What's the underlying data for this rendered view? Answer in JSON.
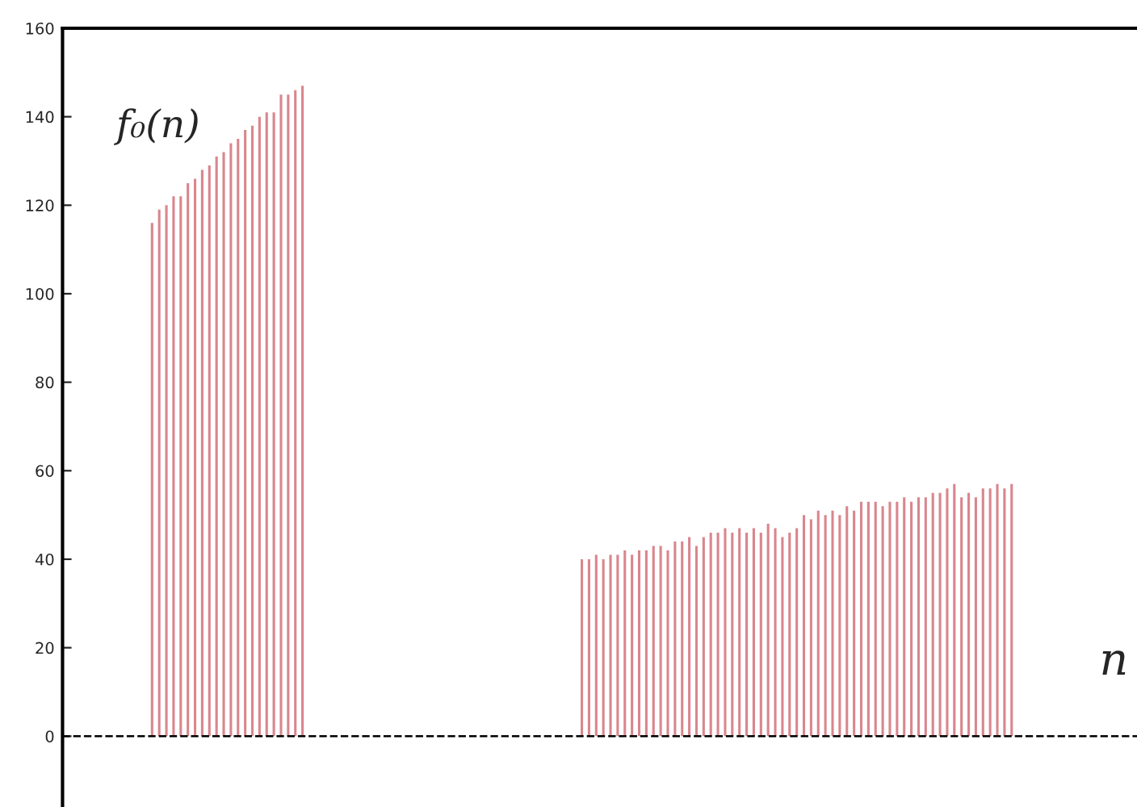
{
  "chart_data": {
    "type": "bar",
    "categories": [
      null,
      null,
      null,
      null,
      null,
      null,
      null,
      null,
      null,
      null,
      null,
      null,
      null,
      null,
      null,
      null,
      null,
      null,
      null,
      null,
      null,
      null,
      null,
      null,
      null,
      null,
      null,
      null,
      null,
      null,
      null,
      null,
      null,
      null,
      null,
      null,
      null,
      null,
      null,
      null,
      null,
      null,
      null,
      null,
      null,
      null,
      null,
      null,
      null,
      null,
      null,
      null,
      null,
      null,
      null,
      null,
      null,
      null,
      null,
      null,
      null,
      null,
      null,
      null,
      null,
      null,
      null,
      null,
      null,
      null,
      null,
      null,
      null,
      null,
      null,
      null,
      null,
      null,
      null,
      null,
      null,
      null,
      null,
      null,
      null,
      null,
      null,
      null,
      null,
      null,
      null,
      null,
      null,
      null,
      null,
      null,
      null,
      null,
      null,
      null,
      null,
      null,
      null,
      null,
      null,
      null,
      null,
      null,
      null,
      null,
      null,
      null,
      null,
      null,
      null,
      null,
      null,
      null,
      null,
      null,
      null,
      null,
      null,
      null,
      null,
      null,
      null,
      null,
      null,
      null,
      null,
      null,
      null,
      null,
      null,
      null,
      null,
      null,
      null,
      null,
      null,
      null,
      null,
      null,
      null,
      null,
      null,
      null,
      null,
      null
    ],
    "values": [
      0,
      0,
      0,
      0,
      0,
      0,
      0,
      0,
      0,
      0,
      0,
      0,
      116,
      119,
      120,
      122,
      122,
      125,
      126,
      128,
      129,
      131,
      132,
      134,
      135,
      137,
      138,
      140,
      141,
      141,
      145,
      145,
      146,
      147,
      0,
      0,
      0,
      0,
      0,
      0,
      0,
      0,
      0,
      0,
      0,
      0,
      0,
      0,
      0,
      0,
      0,
      0,
      0,
      0,
      0,
      0,
      0,
      0,
      0,
      0,
      0,
      0,
      0,
      0,
      0,
      0,
      0,
      0,
      0,
      0,
      0,
      0,
      40,
      40,
      41,
      40,
      41,
      41,
      42,
      41,
      42,
      42,
      43,
      43,
      42,
      44,
      44,
      45,
      43,
      45,
      46,
      46,
      47,
      46,
      47,
      46,
      47,
      46,
      48,
      47,
      45,
      46,
      47,
      50,
      49,
      51,
      50,
      51,
      50,
      52,
      51,
      53,
      53,
      53,
      52,
      53,
      53,
      54,
      53,
      54,
      54,
      55,
      55,
      56,
      57,
      54,
      55,
      54,
      56,
      56,
      57,
      56,
      57,
      0,
      0,
      0,
      0,
      0,
      0,
      0,
      0,
      0,
      0,
      0,
      0,
      0,
      0,
      0,
      0,
      0
    ],
    "color": "#d9868e",
    "ylim": [
      -16,
      160
    ],
    "yticks": [
      0,
      20,
      40,
      60,
      80,
      100,
      120,
      140,
      160
    ],
    "tick_labels": "y",
    "grid": false,
    "ref_lines": [
      {
        "axis": "y",
        "value": 0,
        "color": "#000000",
        "line_style": "dashed"
      }
    ],
    "annotations": [
      "f₀(n)",
      "n"
    ]
  }
}
